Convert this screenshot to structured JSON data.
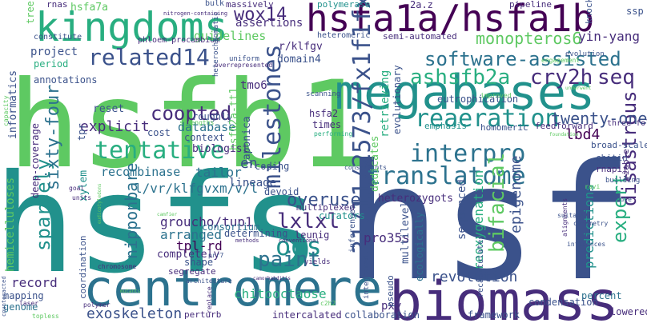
{
  "colors": {
    "background": "#ffffff",
    "palette": [
      "#440154",
      "#472d7b",
      "#3b528b",
      "#2c728e",
      "#21918c",
      "#28ae80",
      "#5ec962",
      "#addc30",
      "#fde725"
    ]
  },
  "words": [
    {
      "text": "hsfb1",
      "color": "#5ec962"
    },
    {
      "text": "hsfs",
      "color": "#21918c"
    },
    {
      "text": "hsf",
      "color": "#3b528b"
    },
    {
      "text": "biomass",
      "color": "#472d7b"
    },
    {
      "text": "centromere",
      "color": "#2c728e"
    },
    {
      "text": "megabases",
      "color": "#21918c"
    },
    {
      "text": "kingdoms",
      "color": "#28ae80"
    },
    {
      "text": "hsfa1a/hsfa1b",
      "color": "#440154"
    },
    {
      "text": "31/11/2573/fx1f1fx1",
      "color": "#3b528b"
    },
    {
      "text": "software-assisted",
      "color": "#2c728e"
    },
    {
      "text": "ashsfb2a",
      "color": "#28ae80"
    },
    {
      "text": "cry2h",
      "color": "#472d7b"
    },
    {
      "text": "seq",
      "color": "#472d7b"
    },
    {
      "text": "reaeration",
      "color": "#21918c"
    },
    {
      "text": "interpro",
      "color": "#2c728e"
    },
    {
      "text": "translatome",
      "color": "#2c728e"
    },
    {
      "text": "tentative",
      "color": "#28ae80"
    },
    {
      "text": "related14",
      "color": "#3b528b"
    },
    {
      "text": "wox14",
      "color": "#472d7b"
    },
    {
      "text": "milestones",
      "color": "#3b528b"
    },
    {
      "text": "sparsely",
      "color": "#21918c"
    },
    {
      "text": "ods",
      "color": "#21918c"
    },
    {
      "text": "lxlxl",
      "color": "#472d7b"
    },
    {
      "text": "paint",
      "color": "#2c728e"
    },
    {
      "text": "bifacial",
      "color": "#5ec962"
    },
    {
      "text": "expert",
      "color": "#28ae80"
    },
    {
      "text": "disastrous",
      "color": "#472d7b"
    },
    {
      "text": "monopteros6",
      "color": "#5ec962"
    },
    {
      "text": "yin-yang",
      "color": "#472d7b"
    },
    {
      "text": "twenty-one",
      "color": "#3b528b"
    },
    {
      "text": "lbd4",
      "color": "#440154"
    },
    {
      "text": "coopted",
      "color": "#472d7b"
    },
    {
      "text": "sixty-four",
      "color": "#2c728e"
    },
    {
      "text": "overuse",
      "color": "#3b528b"
    },
    {
      "text": "nipponbare",
      "color": "#2c728e"
    },
    {
      "text": "revolution",
      "color": "#3b528b"
    },
    {
      "text": "chitooctaose",
      "color": "#28ae80"
    },
    {
      "text": "exoskeleton",
      "color": "#3b528b"
    },
    {
      "text": "pro35s",
      "color": "#472d7b"
    },
    {
      "text": "epigenome",
      "color": "#3b528b"
    },
    {
      "text": "reoxygenation",
      "color": "#28ae80"
    },
    {
      "text": "predictions",
      "color": "#21918c"
    },
    {
      "text": "groucho/tup1",
      "color": "#472d7b"
    },
    {
      "text": "arranged",
      "color": "#2c728e"
    },
    {
      "text": "tpl-rd",
      "color": "#440154"
    },
    {
      "text": "l/vr/klfgvxm/v/l",
      "color": "#2c728e"
    },
    {
      "text": "recombinase",
      "color": "#2c728e"
    },
    {
      "text": "tailor",
      "color": "#2c728e"
    },
    {
      "text": "database",
      "color": "#2c728e"
    },
    {
      "text": "guidelines",
      "color": "#5ec962"
    },
    {
      "text": "assertions",
      "color": "#472d7b"
    },
    {
      "text": "project",
      "color": "#3b528b"
    },
    {
      "text": "informatics",
      "color": "#3b528b"
    },
    {
      "text": "hemicelluloses",
      "color": "#5ec962"
    },
    {
      "text": "record",
      "color": "#472d7b"
    },
    {
      "text": "pxy",
      "color": "#472d7b"
    },
    {
      "text": "percent",
      "color": "#2c728e"
    },
    {
      "text": "lowered",
      "color": "#472d7b"
    },
    {
      "text": "condensation",
      "color": "#3b528b"
    },
    {
      "text": "framework",
      "color": "#3b528b"
    },
    {
      "text": "collaboration",
      "color": "#3b528b"
    },
    {
      "text": "intercalated",
      "color": "#472d7b"
    },
    {
      "text": "perturb",
      "color": "#472d7b"
    },
    {
      "text": "mapping",
      "color": "#3b528b"
    },
    {
      "text": "genome",
      "color": "#2c728e"
    },
    {
      "text": "coordination",
      "color": "#3b528b"
    },
    {
      "text": "period",
      "color": "#28ae80"
    },
    {
      "text": "annotations",
      "color": "#3b528b"
    },
    {
      "text": "explicit",
      "color": "#472d7b"
    },
    {
      "text": "reset",
      "color": "#3b528b"
    },
    {
      "text": "tpr",
      "color": "#3b528b"
    },
    {
      "text": "xylem",
      "color": "#21918c"
    },
    {
      "text": "deep-coverage",
      "color": "#472d7b"
    },
    {
      "text": "cost",
      "color": "#3b528b"
    },
    {
      "text": "context",
      "color": "#3b528b"
    },
    {
      "text": "biologist",
      "color": "#472d7b"
    },
    {
      "text": "roughly",
      "color": "#3b528b"
    },
    {
      "text": "tmo6",
      "color": "#472d7b"
    },
    {
      "text": "hsfb2a-tt1",
      "color": "#5ec962"
    },
    {
      "text": "japonica",
      "color": "#3b528b"
    },
    {
      "text": "hsfa2",
      "color": "#472d7b"
    },
    {
      "text": "times",
      "color": "#472d7b"
    },
    {
      "text": "domain4",
      "color": "#3b528b"
    },
    {
      "text": "r/klfgv",
      "color": "#472d7b"
    },
    {
      "text": "heteromeric",
      "color": "#3b528b"
    },
    {
      "text": "semi-automated",
      "color": "#472d7b"
    },
    {
      "text": "eutrophication",
      "color": "#3b528b"
    },
    {
      "text": "emphasis",
      "color": "#21918c"
    },
    {
      "text": "homomeric",
      "color": "#3b528b"
    },
    {
      "text": "feedforward",
      "color": "#472d7b"
    },
    {
      "text": "broad-scale",
      "color": "#3b528b"
    },
    {
      "text": "chitin",
      "color": "#3b528b"
    },
    {
      "text": "rnapii",
      "color": "#472d7b"
    },
    {
      "text": "viable",
      "color": "#472d7b"
    },
    {
      "text": "building",
      "color": "#3b528b"
    },
    {
      "text": "evolutionary",
      "color": "#3b528b"
    },
    {
      "text": "retrieving",
      "color": "#28ae80"
    },
    {
      "text": "dedicates",
      "color": "#5ec962"
    },
    {
      "text": "heterozygots",
      "color": "#472d7b"
    },
    {
      "text": "curators",
      "color": "#21918c"
    },
    {
      "text": "devoid",
      "color": "#3b528b"
    },
    {
      "text": "lineage",
      "color": "#3b528b"
    },
    {
      "text": "multiplexed",
      "color": "#472d7b"
    },
    {
      "text": "determining",
      "color": "#3b528b"
    },
    {
      "text": "consortium",
      "color": "#2c728e"
    },
    {
      "text": "completely",
      "color": "#472d7b"
    },
    {
      "text": "shape",
      "color": "#3b528b"
    },
    {
      "text": "segregate",
      "color": "#472d7b"
    },
    {
      "text": "leunig",
      "color": "#472d7b"
    },
    {
      "text": "en",
      "color": "#3b528b"
    },
    {
      "text": "coding",
      "color": "#3b528b"
    },
    {
      "text": "sequenced",
      "color": "#3b528b"
    },
    {
      "text": "multilevel",
      "color": "#3b528b"
    },
    {
      "text": "ecologically",
      "color": "#2c728e"
    },
    {
      "text": "inferences",
      "color": "#3b528b"
    },
    {
      "text": "integrated",
      "color": "#3b528b"
    },
    {
      "text": "pseudo",
      "color": "#3b528b"
    },
    {
      "text": "recapitulates",
      "color": "#3b528b"
    },
    {
      "text": "three-fold",
      "color": "#472d7b"
    },
    {
      "text": "hsfa7a",
      "color": "#5ec962"
    },
    {
      "text": "rnas",
      "color": "#472d7b"
    },
    {
      "text": "trees",
      "color": "#5ec962"
    },
    {
      "text": "constitute",
      "color": "#3b528b"
    },
    {
      "text": "phloem-procambium",
      "color": "#472d7b"
    },
    {
      "text": "nitrogen-containing",
      "color": "#472d7b"
    },
    {
      "text": "bulk",
      "color": "#3b528b"
    },
    {
      "text": "massively",
      "color": "#472d7b"
    },
    {
      "text": "polymerase",
      "color": "#21918c"
    },
    {
      "text": "2a.z",
      "color": "#472d7b"
    },
    {
      "text": "pipeline",
      "color": "#472d7b"
    },
    {
      "text": "knock",
      "color": "#3b528b"
    },
    {
      "text": "ssp",
      "color": "#3b528b"
    },
    {
      "text": "uniform",
      "color": "#3b528b"
    },
    {
      "text": "heterochromatic",
      "color": "#3b528b"
    },
    {
      "text": "overrepresented",
      "color": "#472d7b"
    },
    {
      "text": "improved",
      "color": "#5ec962"
    },
    {
      "text": "engagement",
      "color": "#5ec962"
    },
    {
      "text": "evolution",
      "color": "#3b528b"
    },
    {
      "text": "scanning",
      "color": "#3b528b"
    },
    {
      "text": "performing",
      "color": "#28ae80"
    },
    {
      "text": "strengths",
      "color": "#5ec962"
    },
    {
      "text": "units",
      "color": "#472d7b"
    },
    {
      "text": "goal",
      "color": "#472d7b"
    },
    {
      "text": "capacity",
      "color": "#5ec962"
    },
    {
      "text": "chromosome",
      "color": "#472d7b"
    },
    {
      "text": "architecture",
      "color": "#3b528b"
    },
    {
      "text": "methods",
      "color": "#472d7b"
    },
    {
      "text": "conventional",
      "color": "#472d7b"
    },
    {
      "text": "yields",
      "color": "#472d7b"
    },
    {
      "text": "prr7",
      "color": "#3b528b"
    },
    {
      "text": "constraints",
      "color": "#3b528b"
    },
    {
      "text": "cytometry",
      "color": "#3b528b"
    },
    {
      "text": "alignments",
      "color": "#472d7b"
    },
    {
      "text": "influences",
      "color": "#3b528b"
    },
    {
      "text": "suitable",
      "color": "#3b528b"
    },
    {
      "text": "bundle",
      "color": "#3b528b"
    },
    {
      "text": "counteracted",
      "color": "#3b528b"
    },
    {
      "text": "laser",
      "color": "#472d7b"
    },
    {
      "text": "topless",
      "color": "#5ec962"
    },
    {
      "text": "polymer",
      "color": "#472d7b"
    },
    {
      "text": "replace",
      "color": "#472d7b"
    },
    {
      "text": "c2h2",
      "color": "#5ec962"
    },
    {
      "text": "camorhabditis",
      "color": "#472d7b"
    },
    {
      "text": "eudicotyledons",
      "color": "#5ec962"
    },
    {
      "text": "camfier",
      "color": "#5ec962"
    },
    {
      "text": "ravi",
      "color": "#5ec962"
    },
    {
      "text": "mutants",
      "color": "#5ec962"
    },
    {
      "text": "foundation",
      "color": "#5ec962"
    },
    {
      "text": "underwent",
      "color": "#5ec962"
    }
  ]
}
